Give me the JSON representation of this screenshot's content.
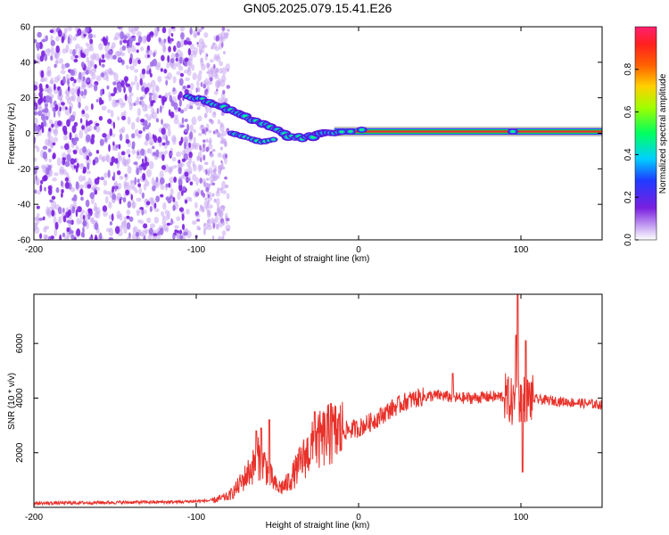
{
  "figure_title": "GN05.2025.079.15.41.E26",
  "colors": {
    "snr_line": "#e8312a",
    "speckle": "#7a1fe0",
    "speckle_light": "#c9a8f2",
    "track_core": "#e8312a"
  },
  "chart_data": [
    {
      "type": "heatmap",
      "xlabel": "Height of straight line (km)",
      "ylabel": "Frequency (Hz)",
      "xlim": [
        -200,
        150
      ],
      "ylim": [
        -60,
        60
      ],
      "x_ticks": [
        -200,
        -100,
        0,
        100
      ],
      "y_ticks": [
        -60,
        -40,
        -20,
        0,
        20,
        40,
        60
      ],
      "x_tick_labels": [
        "-200",
        "-100",
        "0",
        "100"
      ],
      "y_tick_labels": [
        "-60",
        "-40",
        "-20",
        "0",
        "20",
        "40",
        "60"
      ],
      "colorbar": {
        "label": "Normalized spectral amplitude",
        "range": [
          0,
          1
        ],
        "ticks": [
          0,
          0.2,
          0.4,
          0.6,
          0.8
        ],
        "tick_labels": [
          "0.0",
          "0.2",
          "0.4",
          "0.6",
          "0.8"
        ]
      },
      "features": {
        "noise_region_x": [
          -200,
          -80
        ],
        "dense_noise_x": [
          -200,
          -103
        ],
        "doppler_track": [
          {
            "x": -105,
            "y": 21
          },
          {
            "x": -90,
            "y": 17
          },
          {
            "x": -75,
            "y": 11
          },
          {
            "x": -60,
            "y": 5
          },
          {
            "x": -50,
            "y": 2
          },
          {
            "x": -40,
            "y": -3
          },
          {
            "x": -30,
            "y": -2
          },
          {
            "x": -20,
            "y": 0
          },
          {
            "x": -10,
            "y": 1
          },
          {
            "x": 0,
            "y": 1
          },
          {
            "x": 20,
            "y": 1
          },
          {
            "x": 150,
            "y": 1
          }
        ],
        "lower_branch": [
          {
            "x": -78,
            "y": 0
          },
          {
            "x": -70,
            "y": -2
          },
          {
            "x": -60,
            "y": -5
          },
          {
            "x": -50,
            "y": -3
          }
        ]
      }
    },
    {
      "type": "line",
      "xlabel": "Height of straight line (km)",
      "ylabel": "SNR (10 * v/v)",
      "xlim": [
        -200,
        150
      ],
      "ylim": [
        0,
        7800
      ],
      "x_ticks": [
        -200,
        -100,
        0,
        100
      ],
      "y_ticks": [
        2000,
        4000,
        6000
      ],
      "x_tick_labels": [
        "-200",
        "-100",
        "0",
        "100"
      ],
      "y_tick_labels": [
        "2000",
        "4000",
        "6000"
      ],
      "series": [
        {
          "envelope": [
            {
              "x": -200,
              "y": 150
            },
            {
              "x": -150,
              "y": 180
            },
            {
              "x": -110,
              "y": 200
            },
            {
              "x": -90,
              "y": 250
            },
            {
              "x": -80,
              "y": 400
            },
            {
              "x": -75,
              "y": 700
            },
            {
              "x": -70,
              "y": 1100
            },
            {
              "x": -65,
              "y": 1500
            },
            {
              "x": -62,
              "y": 1800
            },
            {
              "x": -58,
              "y": 1600
            },
            {
              "x": -55,
              "y": 1200
            },
            {
              "x": -50,
              "y": 700
            },
            {
              "x": -45,
              "y": 800
            },
            {
              "x": -40,
              "y": 1200
            },
            {
              "x": -35,
              "y": 1700
            },
            {
              "x": -30,
              "y": 2100
            },
            {
              "x": -25,
              "y": 2400
            },
            {
              "x": -20,
              "y": 2600
            },
            {
              "x": -10,
              "y": 2800
            },
            {
              "x": 0,
              "y": 2900
            },
            {
              "x": 10,
              "y": 3200
            },
            {
              "x": 20,
              "y": 3600
            },
            {
              "x": 30,
              "y": 3900
            },
            {
              "x": 40,
              "y": 4050
            },
            {
              "x": 50,
              "y": 4100
            },
            {
              "x": 60,
              "y": 4000
            },
            {
              "x": 70,
              "y": 4000
            },
            {
              "x": 80,
              "y": 4050
            },
            {
              "x": 90,
              "y": 4050
            },
            {
              "x": 95,
              "y": 3800
            },
            {
              "x": 100,
              "y": 4000
            },
            {
              "x": 110,
              "y": 3950
            },
            {
              "x": 130,
              "y": 3850
            },
            {
              "x": 150,
              "y": 3750
            }
          ],
          "spikes": [
            {
              "x": -63,
              "y": 2800
            },
            {
              "x": -60,
              "y": 2900
            },
            {
              "x": -55,
              "y": 3200
            },
            {
              "x": -27,
              "y": 3500
            },
            {
              "x": -17,
              "y": 3800
            },
            {
              "x": 58,
              "y": 4900
            },
            {
              "x": 97,
              "y": 6300
            },
            {
              "x": 98,
              "y": 7800
            },
            {
              "x": 101,
              "y": 1300
            },
            {
              "x": 103,
              "y": 6100
            }
          ]
        }
      ]
    }
  ]
}
